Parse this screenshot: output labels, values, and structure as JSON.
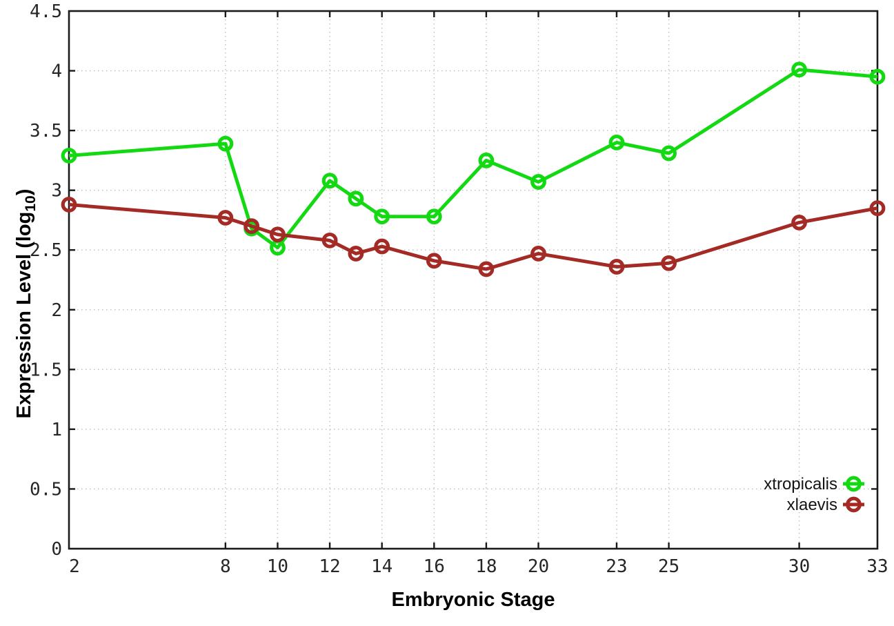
{
  "figure": {
    "background": "#ffffff"
  },
  "chart_data": {
    "type": "line",
    "title": "",
    "xlabel": "Embryonic Stage",
    "ylabel": "Expression Level (log10)",
    "ylabel_parts": {
      "main": "Expression Level (log",
      "sub": "10",
      "close": ")"
    },
    "xlim": [
      2,
      33
    ],
    "ylim": [
      0,
      4.5
    ],
    "grid": true,
    "legend_position": "inside-bottom-right",
    "x_ticks": [
      2,
      8,
      10,
      12,
      14,
      16,
      18,
      20,
      23,
      25,
      30,
      33
    ],
    "x_tick_labels": [
      "2",
      "8",
      "10",
      "12",
      "14",
      "16",
      "18",
      "20",
      "23",
      "25",
      "30",
      "33"
    ],
    "y_ticks": [
      0,
      0.5,
      1,
      1.5,
      2,
      2.5,
      3,
      3.5,
      4,
      4.5
    ],
    "y_tick_labels": [
      "0",
      "0.5",
      "1",
      "1.5",
      "2",
      "2.5",
      "3",
      "3.5",
      "4",
      "4.5"
    ],
    "x": [
      2,
      8,
      9,
      10,
      12,
      13,
      14,
      16,
      18,
      20,
      23,
      25,
      30,
      33
    ],
    "series": [
      {
        "name": "xtropicalis",
        "color": "#12d912",
        "values": [
          3.29,
          3.39,
          2.68,
          2.52,
          3.08,
          2.93,
          2.78,
          2.78,
          3.25,
          3.07,
          3.4,
          3.31,
          4.01,
          3.95
        ]
      },
      {
        "name": "xlaevis",
        "color": "#a42b25",
        "values": [
          2.88,
          2.77,
          2.7,
          2.63,
          2.58,
          2.47,
          2.53,
          2.41,
          2.34,
          2.47,
          2.36,
          2.39,
          2.73,
          2.85
        ]
      }
    ],
    "axis_color": "#1a1a1a",
    "grid_color": "#bdbdbd",
    "tick_label_color": "#262626"
  }
}
